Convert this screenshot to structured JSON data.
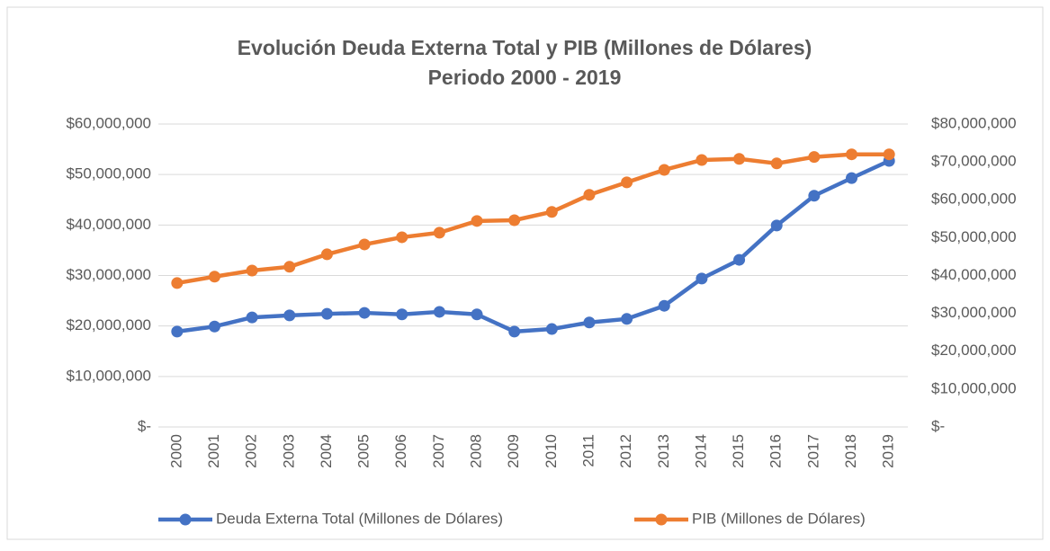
{
  "chart_data": {
    "type": "line",
    "title": "Evolución Deuda Externa Total y PIB (Millones de Dólares)",
    "subtitle": "Periodo 2000 - 2019",
    "categories": [
      "2000",
      "2001",
      "2002",
      "2003",
      "2004",
      "2005",
      "2006",
      "2007",
      "2008",
      "2009",
      "2010",
      "2011",
      "2012",
      "2013",
      "2014",
      "2015",
      "2016",
      "2017",
      "2018",
      "2019"
    ],
    "series": [
      {
        "name": "Deuda Externa Total (Millones de Dólares)",
        "color": "#4472c4",
        "axis": "y",
        "values": [
          18900000,
          19900000,
          21700000,
          22100000,
          22400000,
          22600000,
          22300000,
          22800000,
          22300000,
          18900000,
          19400000,
          20700000,
          21400000,
          24000000,
          29400000,
          33100000,
          39900000,
          45800000,
          49300000,
          52700000
        ]
      },
      {
        "name": "PIB (Millones de Dólares)",
        "color": "#ed7d31",
        "axis": "y2",
        "values": [
          38000000,
          39700000,
          41300000,
          42300000,
          45600000,
          48200000,
          50100000,
          51300000,
          54400000,
          54600000,
          56800000,
          61300000,
          64600000,
          67900000,
          70500000,
          70800000,
          69600000,
          71300000,
          72000000,
          72000000
        ]
      }
    ],
    "ylim": [
      0,
      60000000
    ],
    "yticks": [
      {
        "value": 0,
        "label": "$-"
      },
      {
        "value": 10000000,
        "label": "$10,000,000"
      },
      {
        "value": 20000000,
        "label": "$20,000,000"
      },
      {
        "value": 30000000,
        "label": "$30,000,000"
      },
      {
        "value": 40000000,
        "label": "$40,000,000"
      },
      {
        "value": 50000000,
        "label": "$50,000,000"
      },
      {
        "value": 60000000,
        "label": "$60,000,000"
      }
    ],
    "y2lim": [
      0,
      80000000
    ],
    "y2ticks": [
      {
        "value": 0,
        "label": "$-"
      },
      {
        "value": 10000000,
        "label": "$10,000,000"
      },
      {
        "value": 20000000,
        "label": "$20,000,000"
      },
      {
        "value": 30000000,
        "label": "$30,000,000"
      },
      {
        "value": 40000000,
        "label": "$40,000,000"
      },
      {
        "value": 50000000,
        "label": "$50,000,000"
      },
      {
        "value": 60000000,
        "label": "$60,000,000"
      },
      {
        "value": 70000000,
        "label": "$70,000,000"
      },
      {
        "value": 80000000,
        "label": "$80,000,000"
      }
    ],
    "grid": true,
    "legend": "bottom"
  }
}
